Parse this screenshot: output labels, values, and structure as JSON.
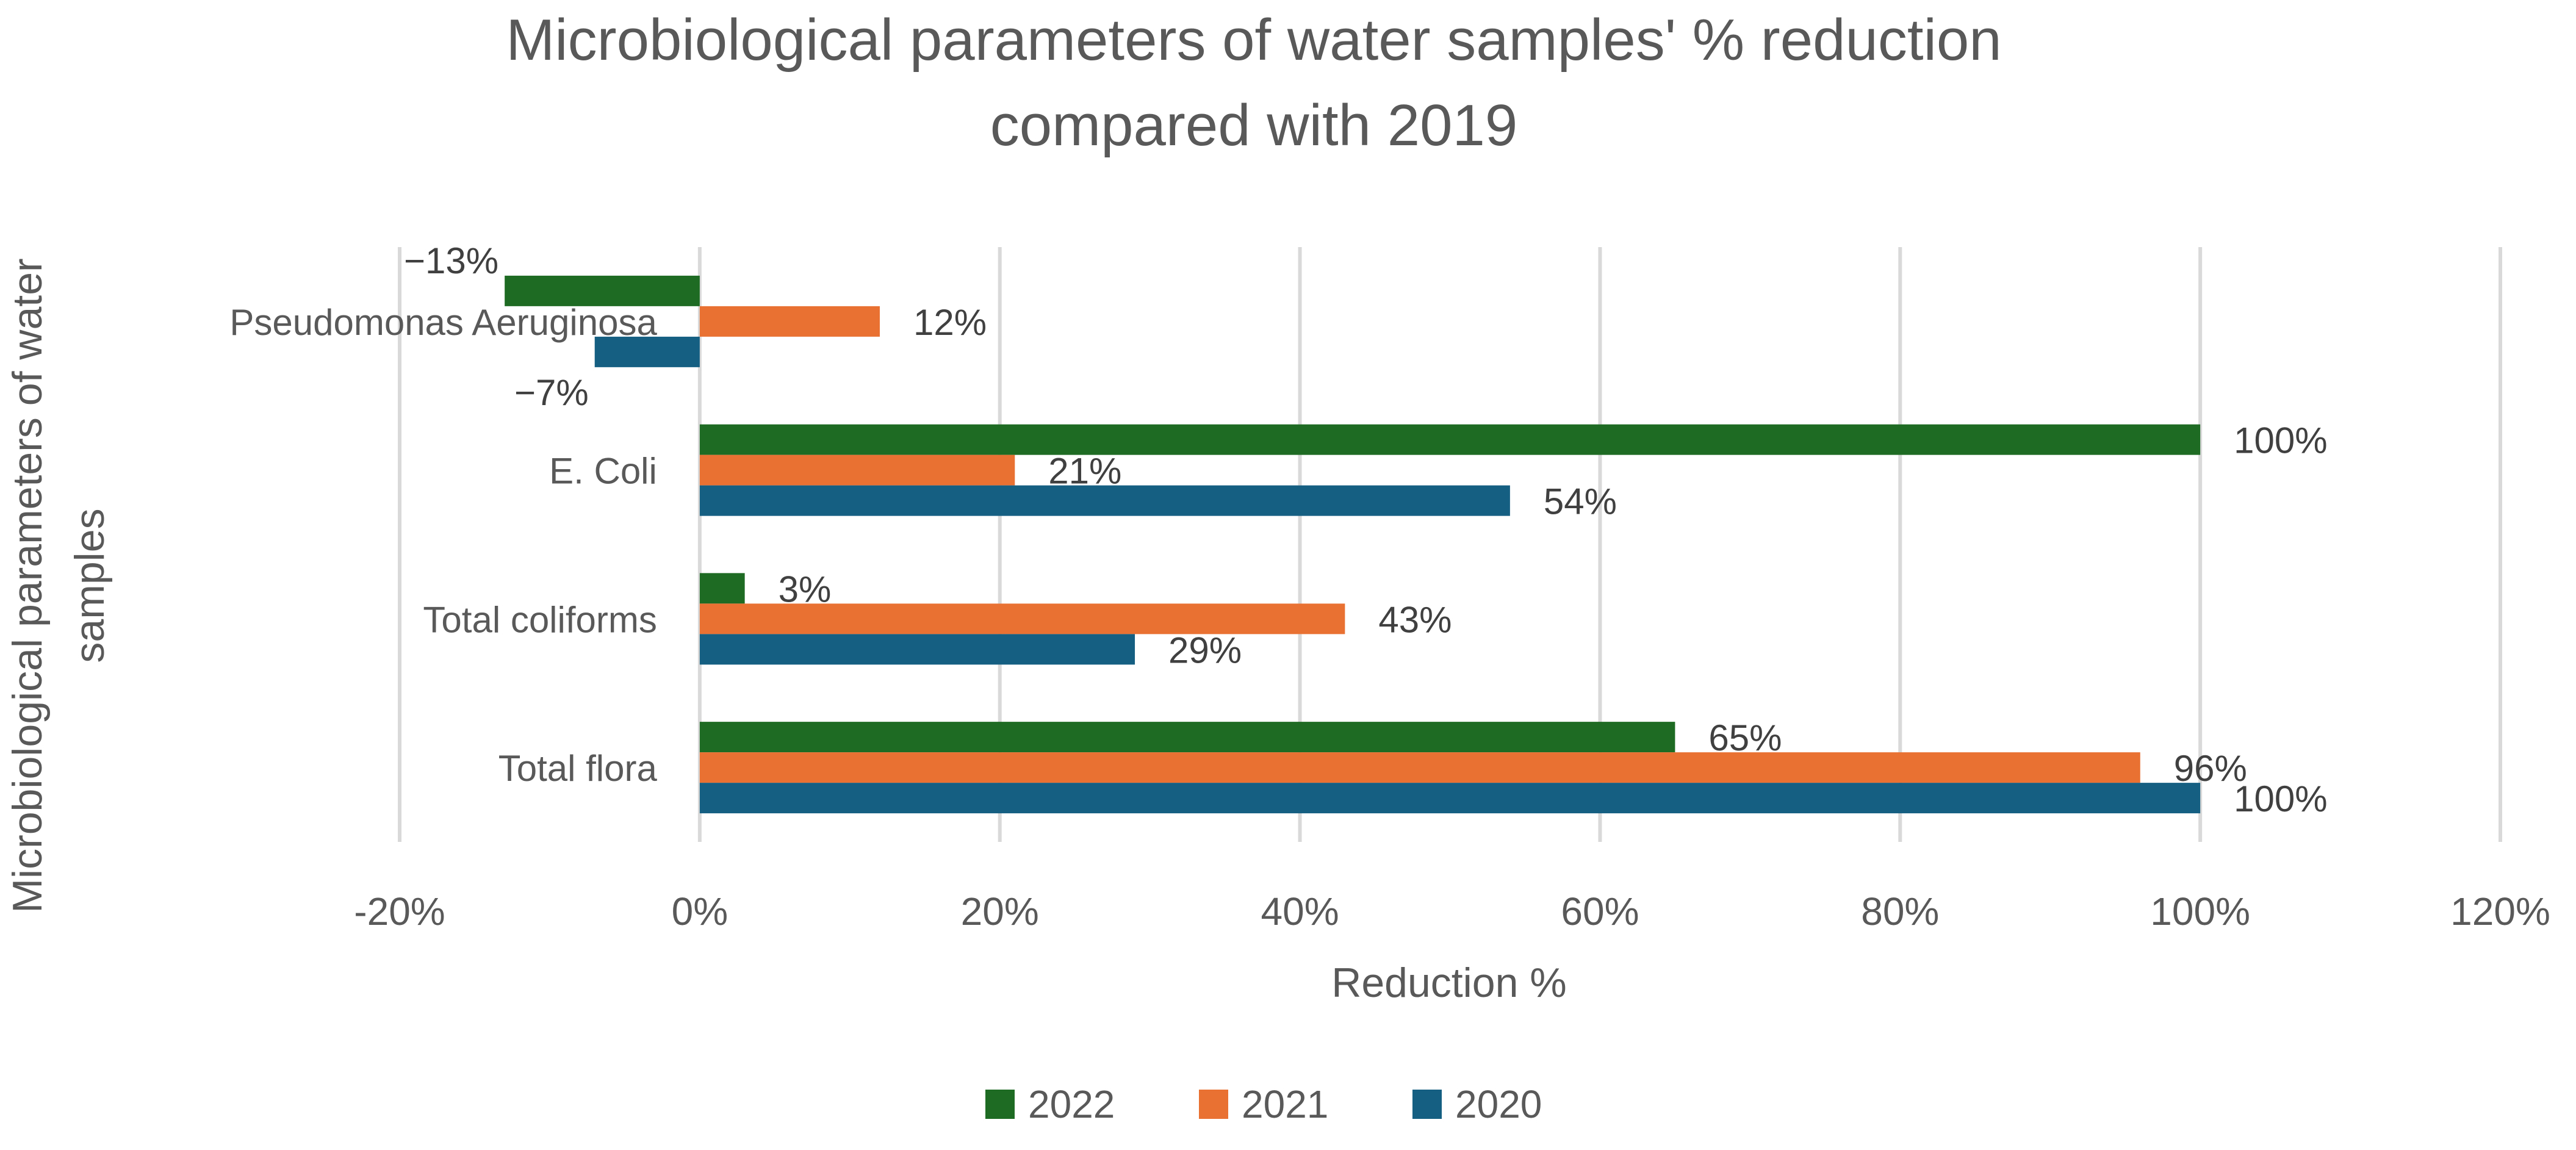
{
  "chart_data": {
    "type": "bar",
    "orientation": "horizontal",
    "title": "Microbiological parameters of water samples' % reduction compared with 2019",
    "title_lines": [
      "Microbiological parameters of water samples' % reduction",
      "compared with 2019"
    ],
    "xlabel": "Reduction %",
    "ylabel": "Microbiological parameters of water samples",
    "ylabel_lines": [
      "Microbiological parameters of water",
      "samples"
    ],
    "categories": [
      "Pseudomonas Aeruginosa",
      "E. Coli",
      "Total coliforms",
      "Total flora"
    ],
    "series": [
      {
        "name": "2022",
        "color": "#1e6b24",
        "values": [
          -13,
          100,
          3,
          65
        ],
        "labels": [
          "−13%",
          "100%",
          "3%",
          "65%"
        ]
      },
      {
        "name": "2021",
        "color": "#e97132",
        "values": [
          12,
          21,
          43,
          96
        ],
        "labels": [
          "12%",
          "21%",
          "43%",
          "96%"
        ]
      },
      {
        "name": "2020",
        "color": "#155f82",
        "values": [
          -7,
          54,
          29,
          100
        ],
        "labels": [
          "−7%",
          "54%",
          "29%",
          "100%"
        ]
      }
    ],
    "xlim": [
      -20,
      120
    ],
    "xticks": [
      -20,
      0,
      20,
      40,
      60,
      80,
      100,
      120
    ],
    "xtick_labels": [
      "-20%",
      "0%",
      "20%",
      "40%",
      "60%",
      "80%",
      "100%",
      "120%"
    ],
    "grid": true,
    "legend": {
      "position": "bottom",
      "entries": [
        "2022",
        "2021",
        "2020"
      ]
    },
    "colors": {
      "text": "#595959",
      "grid": "#d9d9d9"
    }
  }
}
